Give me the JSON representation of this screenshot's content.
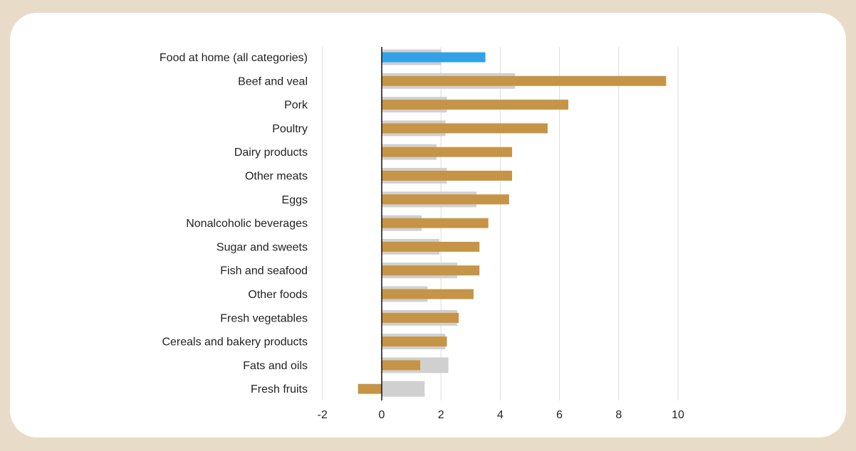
{
  "chart_data": {
    "type": "bar",
    "orientation": "horizontal",
    "title": "",
    "xlabel": "",
    "ylabel": "",
    "xlim": [
      -2,
      10
    ],
    "xticks": [
      -2,
      0,
      2,
      4,
      6,
      8,
      10
    ],
    "xtick_labels": [
      "-2",
      "0",
      "2",
      "4",
      "6",
      "8",
      "10"
    ],
    "grid": "vertical",
    "legend": "none",
    "categories": [
      "Food at home (all categories)",
      "Beef and veal",
      "Pork",
      "Poultry",
      "Dairy products",
      "Other meats",
      "Eggs",
      "Nonalcoholic beverages",
      "Sugar and sweets",
      "Fish and seafood",
      "Other foods",
      "Fresh vegetables",
      "Cereals and bakery products",
      "Fats and oils",
      "Fresh fruits"
    ],
    "series": [
      {
        "name": "background",
        "color": "#D0D0D0",
        "values": [
          2.0,
          4.5,
          2.2,
          2.15,
          1.85,
          2.2,
          3.2,
          1.35,
          1.95,
          2.55,
          1.55,
          2.55,
          2.15,
          2.25,
          1.45
        ]
      },
      {
        "name": "foreground",
        "color": "#C69446",
        "highlight_color": "#33A1E8",
        "highlight_index": 0,
        "values": [
          3.5,
          9.6,
          6.3,
          5.6,
          4.4,
          4.4,
          4.3,
          3.6,
          3.3,
          3.3,
          3.1,
          2.6,
          2.2,
          1.3,
          -0.8
        ]
      }
    ]
  },
  "colors": {
    "background": "#E8DCC8",
    "card": "#FFFFFF",
    "gridline": "#DDDDDD",
    "axis": "#111111"
  }
}
